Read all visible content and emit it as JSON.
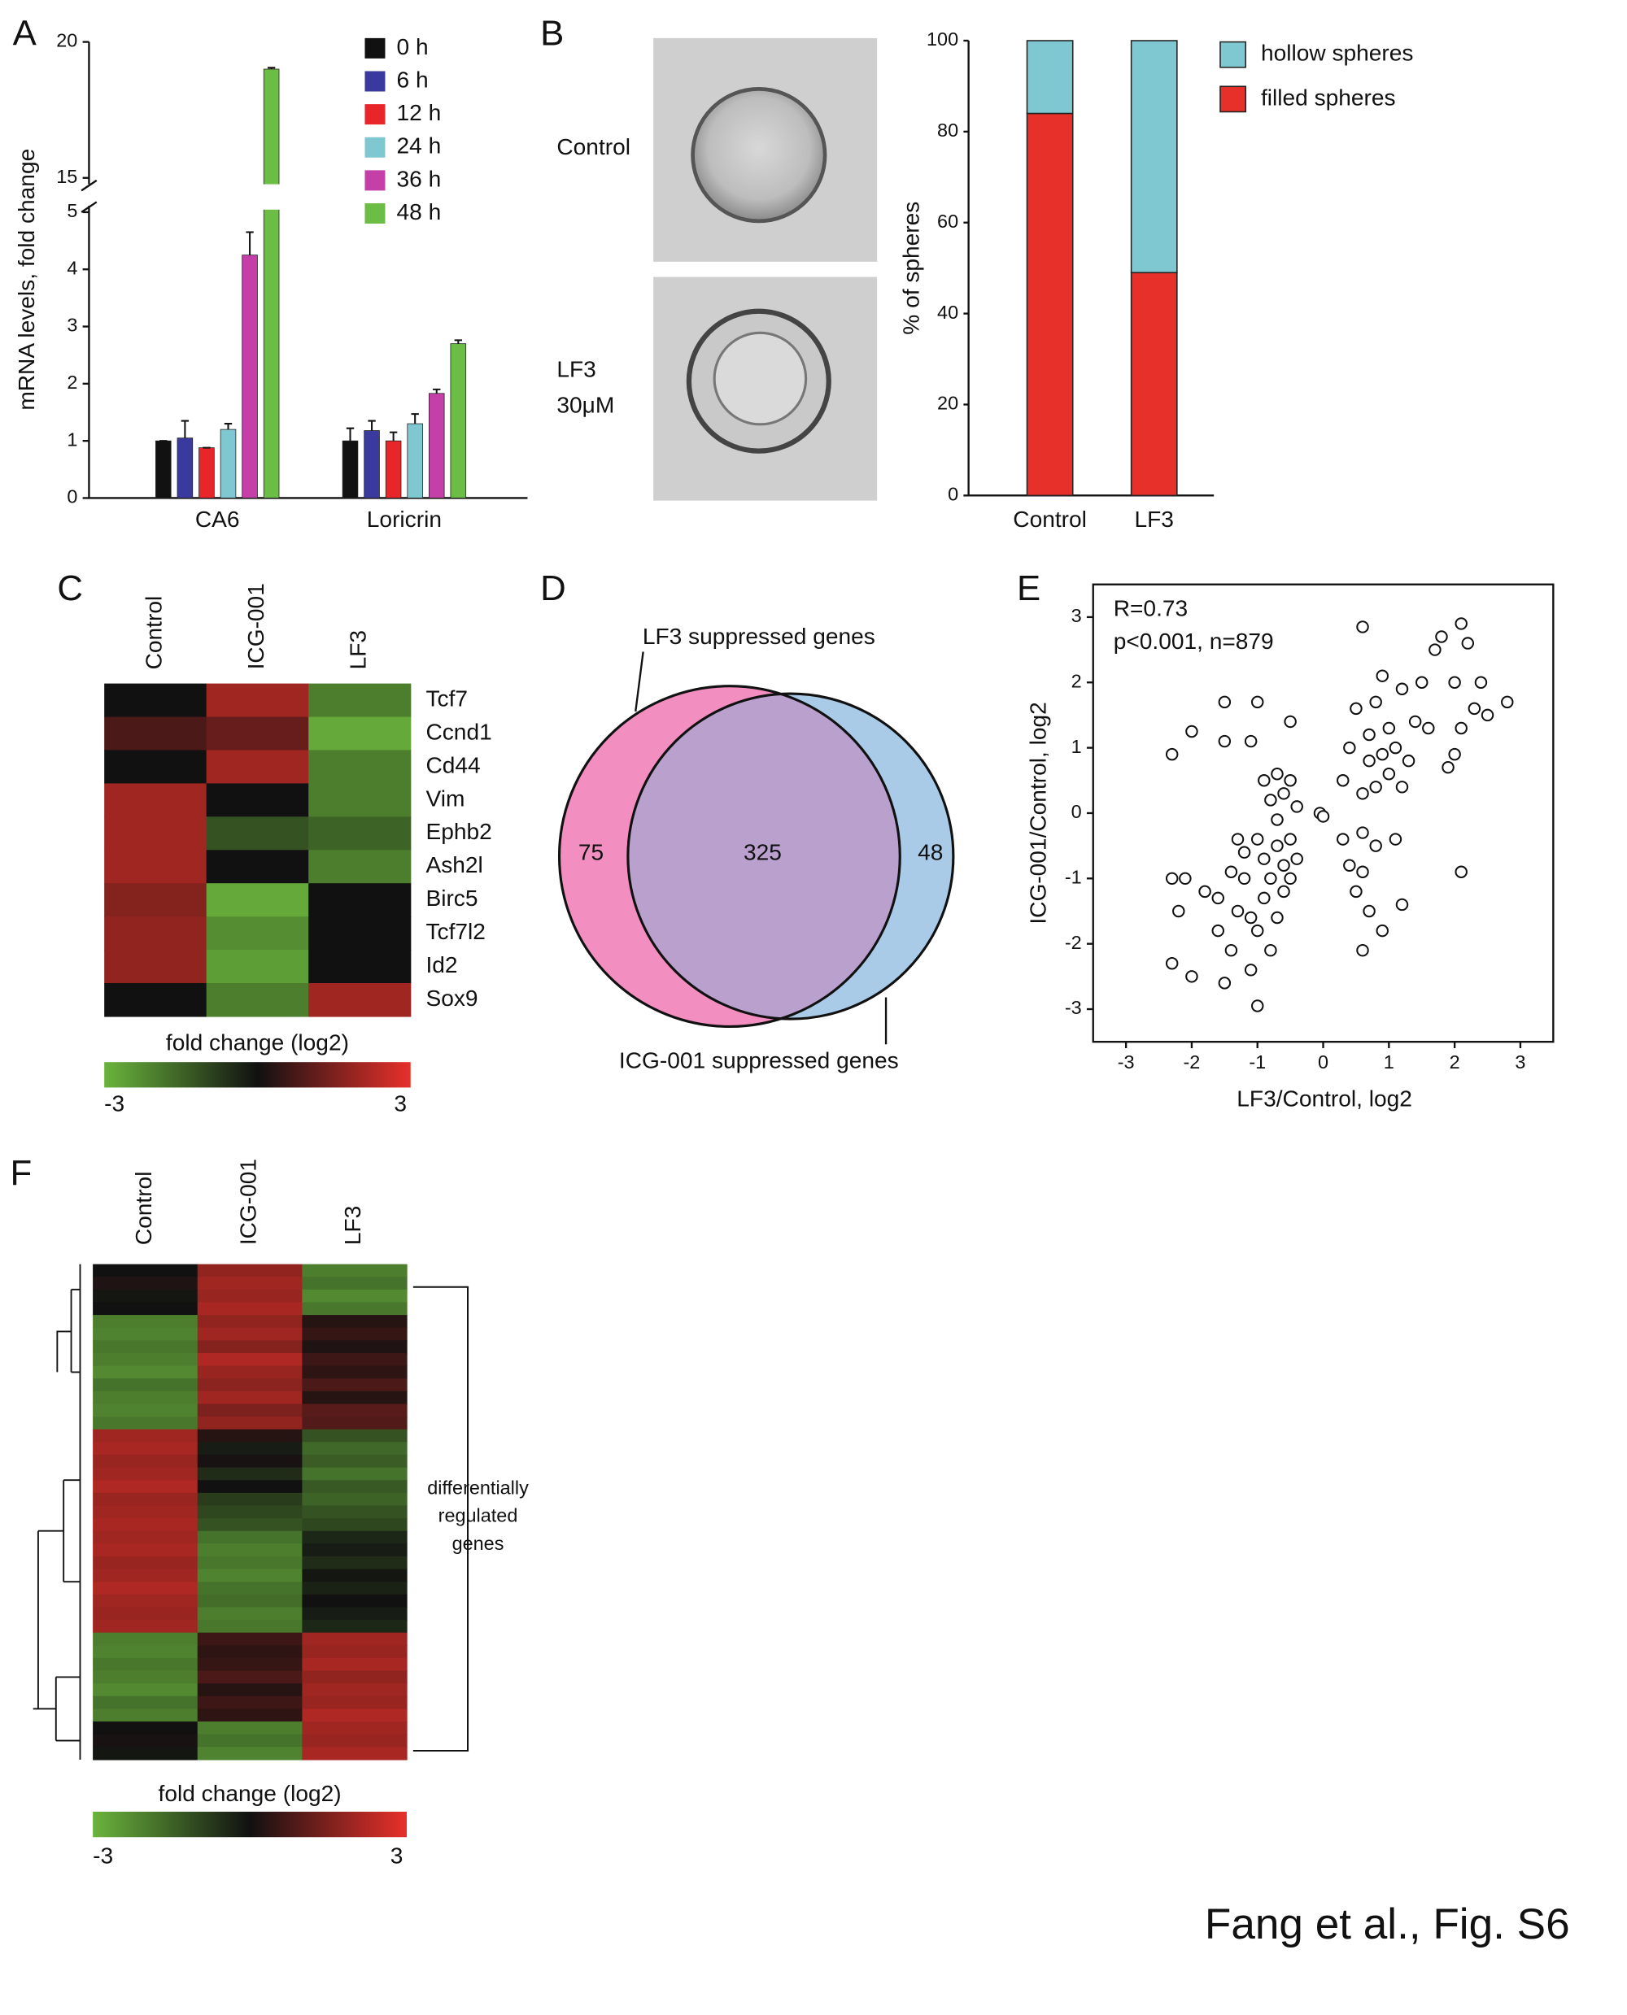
{
  "chart_data": [
    {
      "type": "bar",
      "panel": "A",
      "ylabel": "mRNA levels, fold change",
      "categories": [
        "CA6",
        "Loricrin"
      ],
      "series": [
        {
          "name": "0 h",
          "color": "#111111",
          "values": [
            1.0,
            1.0
          ],
          "errors": [
            0,
            0.22
          ]
        },
        {
          "name": "6 h",
          "color": "#3a3a9e",
          "values": [
            1.05,
            1.18
          ],
          "errors": [
            0.3,
            0.17
          ]
        },
        {
          "name": "12 h",
          "color": "#e8262a",
          "values": [
            0.88,
            1.0
          ],
          "errors": [
            0,
            0.15
          ]
        },
        {
          "name": "24 h",
          "color": "#7fc8d2",
          "values": [
            1.2,
            1.3
          ],
          "errors": [
            0.1,
            0.17
          ]
        },
        {
          "name": "36 h",
          "color": "#c43fa8",
          "values": [
            4.25,
            1.83
          ],
          "errors": [
            0.4,
            0.07
          ]
        },
        {
          "name": "48 h",
          "color": "#6cbd45",
          "values": [
            19.0,
            2.7
          ],
          "errors": [
            0.05,
            0.06
          ]
        }
      ],
      "ylim": [
        0,
        20
      ],
      "ybreak": [
        5,
        15
      ],
      "yticks": [
        0,
        1,
        2,
        3,
        4,
        5,
        15,
        20
      ]
    },
    {
      "type": "stacked-bar",
      "panel": "B",
      "ylabel": "% of spheres",
      "image_labels": [
        [
          "Control"
        ],
        [
          "LF3",
          "30μM"
        ]
      ],
      "categories": [
        "Control",
        "LF3"
      ],
      "series": [
        {
          "name": "filled spheres",
          "color": "#e8302a",
          "values": [
            84,
            49
          ]
        },
        {
          "name": "hollow spheres",
          "color": "#7fc8d2",
          "values": [
            16,
            51
          ]
        }
      ],
      "ylim": [
        0,
        100
      ],
      "yticks": [
        0,
        20,
        40,
        60,
        80,
        100
      ]
    },
    {
      "type": "heatmap",
      "panel": "C",
      "columns": [
        "Control",
        "ICG-001",
        "LF3"
      ],
      "rows": [
        "Tcf7",
        "Ccnd1",
        "Cd44",
        "Vim",
        "Ephb2",
        "Ash2l",
        "Birc5",
        "Tcf7l2",
        "Id2",
        "Sox9"
      ],
      "values": [
        [
          0,
          2,
          -2
        ],
        [
          0.8,
          1.2,
          -2.8
        ],
        [
          0,
          2,
          -2
        ],
        [
          2,
          0,
          -2
        ],
        [
          2,
          -1.2,
          -1.5
        ],
        [
          2,
          0,
          -2
        ],
        [
          1.6,
          -2.8,
          0
        ],
        [
          1.8,
          -2.3,
          0
        ],
        [
          1.8,
          -2.6,
          0
        ],
        [
          0,
          -2,
          2
        ]
      ],
      "colorbar_label": "fold change (log2)",
      "clim": [
        -3,
        3
      ],
      "cticks": [
        -3,
        3
      ],
      "colors": [
        "#6ab43c",
        "#111111",
        "#e8302a"
      ]
    },
    {
      "type": "venn",
      "panel": "D",
      "sets": [
        {
          "name": "LF3 suppressed genes",
          "color": "#f28fc0"
        },
        {
          "name": "ICG-001 suppressed genes",
          "color": "#a9cbe8"
        }
      ],
      "intersection_color": "#b9a0cd",
      "values": [
        75,
        325,
        48
      ]
    },
    {
      "type": "scatter",
      "panel": "E",
      "annotations": [
        "R=0.73",
        "p<0.001, n=879"
      ],
      "xlabel": "LF3/Control, log2",
      "ylabel": "ICG-001/Control, log2",
      "xlim": [
        -3.5,
        3.5
      ],
      "ylim": [
        -3.5,
        3.5
      ],
      "xticks": [
        -3,
        -2,
        -1,
        0,
        1,
        2,
        3
      ],
      "yticks": [
        -3,
        -2,
        -1,
        0,
        1,
        2,
        3
      ],
      "x": [
        -2.3,
        -2.0,
        -1.5,
        -1.0,
        -1.5,
        -1.1,
        -0.5,
        -0.9,
        -0.7,
        -0.5,
        -0.6,
        -0.8,
        -0.4,
        -0.7,
        -2.3,
        -2.1,
        -2.2,
        -2.3,
        -2.0,
        -1.8,
        -1.6,
        -1.5,
        -1.4,
        -1.3,
        -1.2,
        -1.1,
        -1.0,
        -1.0,
        -0.9,
        -0.9,
        -0.8,
        -0.8,
        -0.7,
        -0.7,
        -0.6,
        -0.6,
        -0.5,
        -0.5,
        -1.2,
        -1.4,
        -1.6,
        -1.0,
        -0.4,
        -1.3,
        -1.1,
        -0.05,
        0.0,
        0.3,
        0.4,
        0.5,
        0.6,
        0.6,
        0.7,
        0.8,
        0.9,
        1.1,
        1.2,
        0.6,
        0.3,
        0.4,
        0.5,
        0.6,
        0.6,
        0.7,
        0.7,
        0.8,
        0.8,
        0.9,
        0.9,
        1.0,
        1.0,
        1.1,
        1.2,
        1.2,
        1.3,
        1.4,
        1.5,
        1.6,
        1.8,
        1.9,
        2.0,
        2.1,
        2.1,
        2.1,
        2.3,
        2.4,
        2.5,
        2.8,
        1.7,
        2.0,
        2.2
      ],
      "values": [
        0.9,
        1.25,
        1.7,
        1.7,
        1.1,
        1.1,
        1.4,
        0.5,
        0.6,
        0.5,
        0.3,
        0.2,
        0.1,
        -0.1,
        -1.0,
        -1.0,
        -1.5,
        -2.3,
        -2.5,
        -1.2,
        -1.8,
        -2.6,
        -2.1,
        -1.5,
        -1.0,
        -2.4,
        -2.95,
        -1.8,
        -1.3,
        -0.7,
        -2.1,
        -1.0,
        -1.6,
        -0.5,
        -1.2,
        -0.8,
        -0.4,
        -1.0,
        -0.6,
        -0.9,
        -1.3,
        -0.4,
        -0.7,
        -0.4,
        -1.6,
        0.0,
        -0.05,
        -0.4,
        -0.8,
        -1.2,
        -0.3,
        -0.9,
        -1.5,
        -0.5,
        -1.8,
        -0.4,
        -1.4,
        -2.1,
        0.5,
        1.0,
        1.6,
        0.3,
        2.85,
        0.8,
        1.2,
        0.4,
        1.7,
        0.9,
        2.1,
        0.6,
        1.3,
        1.0,
        1.9,
        0.4,
        0.8,
        1.4,
        2.0,
        1.3,
        2.7,
        0.7,
        2.0,
        2.9,
        1.3,
        -0.9,
        1.6,
        2.0,
        1.5,
        1.7,
        2.5,
        0.9,
        2.6
      ]
    },
    {
      "type": "heatmap",
      "panel": "F",
      "columns": [
        "Control",
        "ICG-001",
        "LF3"
      ],
      "annotation": [
        "differentially",
        "regulated",
        "genes"
      ],
      "values": [
        [
          0,
          1.8,
          -2
        ],
        [
          0.2,
          2,
          -1.8
        ],
        [
          -0.1,
          1.9,
          -2.2
        ],
        [
          0,
          2.1,
          -1.9
        ],
        [
          -2,
          1.8,
          0.3
        ],
        [
          -2.1,
          2,
          0.5
        ],
        [
          -1.9,
          1.6,
          0.2
        ],
        [
          -2,
          2.2,
          0.6
        ],
        [
          -2.2,
          1.9,
          0.4
        ],
        [
          -1.8,
          1.7,
          0.8
        ],
        [
          -2,
          2,
          0.3
        ],
        [
          -2.1,
          1.5,
          1
        ],
        [
          -1.9,
          1.8,
          0.9
        ],
        [
          2,
          0.3,
          -1.2
        ],
        [
          2.1,
          -0.2,
          -1.6
        ],
        [
          1.9,
          0.1,
          -1.4
        ],
        [
          2,
          -0.5,
          -1.8
        ],
        [
          2.2,
          0,
          -1.3
        ],
        [
          1.9,
          -0.8,
          -1.5
        ],
        [
          2,
          -1,
          -1.2
        ],
        [
          2.1,
          -1.2,
          -1
        ],
        [
          2,
          -1.8,
          -0.4
        ],
        [
          2.1,
          -2,
          -0.2
        ],
        [
          1.9,
          -1.9,
          -0.5
        ],
        [
          2,
          -2.1,
          -0.1
        ],
        [
          2.2,
          -1.8,
          -0.3
        ],
        [
          2,
          -1.7,
          0
        ],
        [
          1.9,
          -2,
          -0.2
        ],
        [
          2,
          -1.9,
          -0.4
        ],
        [
          -2,
          0.6,
          2
        ],
        [
          -2.1,
          0.4,
          1.9
        ],
        [
          -1.9,
          0.5,
          2.1
        ],
        [
          -2,
          0.8,
          1.8
        ],
        [
          -2.2,
          0.3,
          2
        ],
        [
          -1.8,
          0.6,
          1.9
        ],
        [
          -2,
          0.4,
          2.2
        ],
        [
          0,
          -2,
          2
        ],
        [
          0.1,
          -1.8,
          1.9
        ],
        [
          -0.1,
          -2.1,
          2.1
        ]
      ],
      "colorbar_label": "fold change (log2)",
      "clim": [
        -3,
        3
      ],
      "cticks": [
        -3,
        3
      ],
      "colors": [
        "#6ab43c",
        "#111111",
        "#e8302a"
      ]
    }
  ],
  "footer": "Fang et al., Fig. S6"
}
